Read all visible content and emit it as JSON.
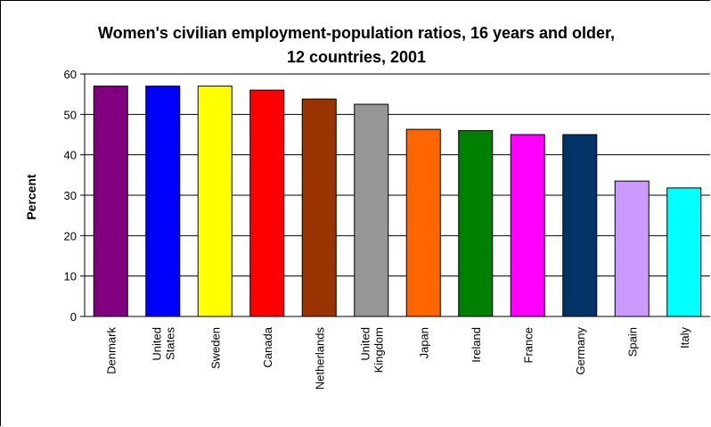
{
  "chart_data": {
    "type": "bar",
    "title": "Women's civilian employment-population ratios, 16  years and older, 12 countries, 2001",
    "title_lines": [
      "Women's civilian employment-population ratios, 16  years and older,",
      "12 countries, 2001"
    ],
    "ylabel": "Percent",
    "xlabel": "",
    "ylim": [
      0,
      60
    ],
    "yticks": [
      "0",
      "10",
      "20",
      "30",
      "40",
      "50",
      "60"
    ],
    "grid": true,
    "legend": "none",
    "categories": [
      "Denmark",
      "United States",
      "Sweden",
      "Canada",
      "Netherlands",
      "United Kingdom",
      "Japan",
      "Ireland",
      "France",
      "Germany",
      "Spain",
      "Italy"
    ],
    "category_lines": [
      [
        "Denmark"
      ],
      [
        "United",
        "States"
      ],
      [
        "Sweden"
      ],
      [
        "Canada"
      ],
      [
        "Netherlands"
      ],
      [
        "United",
        "Kingdom"
      ],
      [
        "Japan"
      ],
      [
        "Ireland"
      ],
      [
        "France"
      ],
      [
        "Germany"
      ],
      [
        "Spain"
      ],
      [
        "Italy"
      ]
    ],
    "values": [
      57,
      57,
      57,
      56,
      53.8,
      52.5,
      46.3,
      46,
      45,
      45,
      33.5,
      31.8
    ],
    "colors": [
      "#800080",
      "#0000ff",
      "#ffff00",
      "#ff0000",
      "#993300",
      "#969696",
      "#ff6600",
      "#008000",
      "#ff00ff",
      "#003366",
      "#cc99ff",
      "#00ffff"
    ]
  }
}
